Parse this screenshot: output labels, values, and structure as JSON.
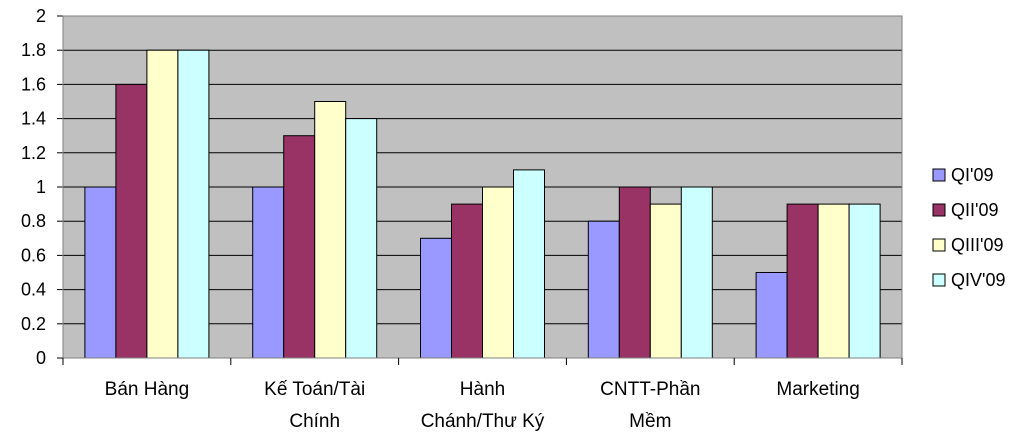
{
  "chart_data": {
    "type": "bar",
    "categories": [
      [
        "Bán Hàng"
      ],
      [
        "Kế Toán/Tài",
        "Chính"
      ],
      [
        "Hành",
        "Chánh/Thư Ký"
      ],
      [
        "CNTT-Phần",
        "Mềm"
      ],
      [
        "Marketing"
      ]
    ],
    "series": [
      {
        "name": "QI'09",
        "color": "#9999ff",
        "values": [
          1.0,
          1.0,
          0.7,
          0.8,
          0.5
        ]
      },
      {
        "name": "QII'09",
        "color": "#993366",
        "values": [
          1.6,
          1.3,
          0.9,
          1.0,
          0.9
        ]
      },
      {
        "name": "QIII'09",
        "color": "#ffffcc",
        "values": [
          1.8,
          1.5,
          1.0,
          0.9,
          0.9
        ]
      },
      {
        "name": "QIV'09",
        "color": "#ccffff",
        "values": [
          1.8,
          1.4,
          1.1,
          1.0,
          0.9
        ]
      }
    ],
    "yticks": [
      "0",
      "0.2",
      "0.4",
      "0.6",
      "0.8",
      "1",
      "1.2",
      "1.4",
      "1.6",
      "1.8",
      "2"
    ],
    "ylim": [
      0,
      2
    ],
    "plot_background": "#c0c0c0",
    "grid": true,
    "legend": "right",
    "title": "",
    "xlabel": "",
    "ylabel": ""
  }
}
